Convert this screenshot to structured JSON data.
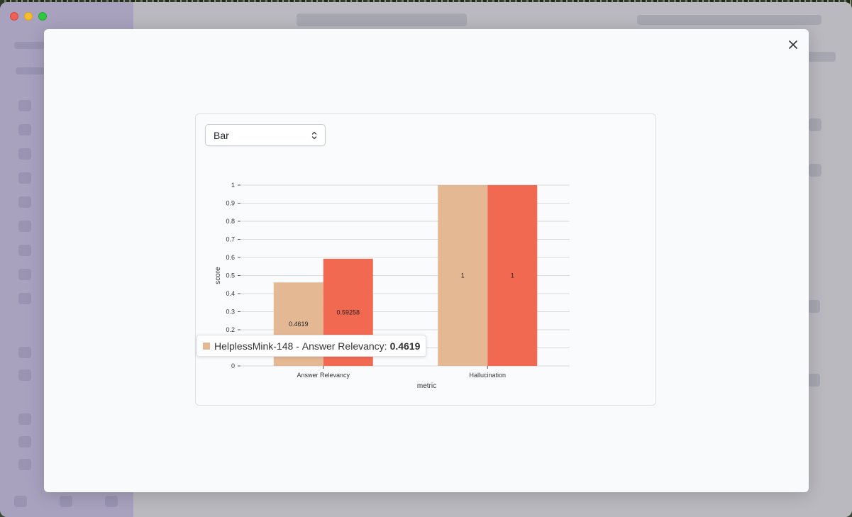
{
  "window": {
    "traffic_lights": [
      "close",
      "minimize",
      "zoom"
    ]
  },
  "modal": {
    "close_icon": "close-icon"
  },
  "chart_type_select": {
    "value": "Bar"
  },
  "tooltip": {
    "series": "HelplessMink-148",
    "separator": "-",
    "category": "Answer Relevancy:",
    "value": "0.4619",
    "color": "#e5b894"
  },
  "chart_data": {
    "type": "bar",
    "xlabel": "metric",
    "ylabel": "score",
    "ylim": [
      0,
      1
    ],
    "yticks": [
      "0",
      "0.1",
      "0.2",
      "0.3",
      "0.4",
      "0.5",
      "0.6",
      "0.7",
      "0.8",
      "0.9",
      "1"
    ],
    "categories": [
      "Answer Relevancy",
      "Hallucination"
    ],
    "series": [
      {
        "name": "HelplessMink-148",
        "color": "#e5b894",
        "values": [
          0.4619,
          1
        ],
        "labels": [
          "0.4619",
          "1"
        ]
      },
      {
        "color": "#f26952",
        "values": [
          0.59258,
          1
        ],
        "labels": [
          "0.59258",
          "1"
        ]
      }
    ],
    "grid": true
  }
}
